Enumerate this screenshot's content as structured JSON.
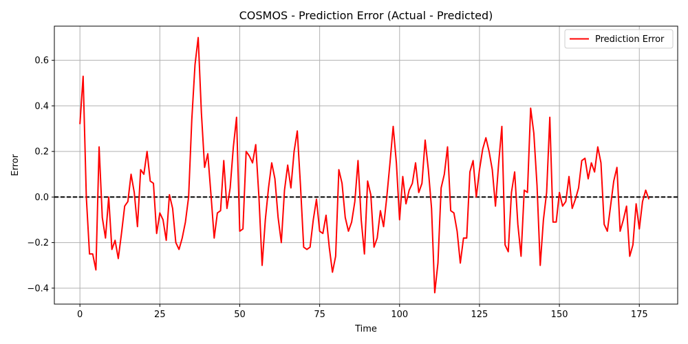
{
  "chart_data": {
    "type": "line",
    "title": "COSMOS - Prediction Error (Actual - Predicted)",
    "xlabel": "Time",
    "ylabel": "Error",
    "xlim": [
      -8,
      187
    ],
    "ylim": [
      -0.47,
      0.75
    ],
    "xticks": [
      0,
      25,
      50,
      75,
      100,
      125,
      150,
      175
    ],
    "xtick_labels": [
      "0",
      "25",
      "50",
      "75",
      "100",
      "125",
      "150",
      "175"
    ],
    "yticks": [
      -0.4,
      -0.2,
      0.0,
      0.2,
      0.4,
      0.6
    ],
    "ytick_labels": [
      "−0.4",
      "−0.2",
      "0.0",
      "0.2",
      "0.4",
      "0.6"
    ],
    "grid": true,
    "legend": {
      "position": "top-right",
      "entries": [
        "Prediction Error"
      ]
    },
    "reference_line": {
      "y": 0,
      "style": "dashed",
      "color": "#000000"
    },
    "series": [
      {
        "name": "Prediction Error",
        "color": "#ff0000",
        "values": [
          0.32,
          0.53,
          0.0,
          -0.25,
          -0.25,
          -0.32,
          0.22,
          -0.09,
          -0.18,
          0.0,
          -0.23,
          -0.19,
          -0.27,
          -0.16,
          -0.04,
          -0.02,
          0.1,
          0.02,
          -0.13,
          0.12,
          0.1,
          0.2,
          0.07,
          0.06,
          -0.16,
          -0.07,
          -0.1,
          -0.19,
          0.01,
          -0.05,
          -0.2,
          -0.23,
          -0.18,
          -0.11,
          0.0,
          0.34,
          0.58,
          0.7,
          0.37,
          0.13,
          0.19,
          0.01,
          -0.18,
          -0.07,
          -0.06,
          0.16,
          -0.05,
          0.04,
          0.22,
          0.35,
          -0.15,
          -0.14,
          0.2,
          0.18,
          0.15,
          0.23,
          0.0,
          -0.3,
          -0.1,
          0.04,
          0.15,
          0.08,
          -0.09,
          -0.2,
          0.03,
          0.14,
          0.04,
          0.2,
          0.29,
          0.05,
          -0.22,
          -0.23,
          -0.22,
          -0.1,
          -0.01,
          -0.15,
          -0.16,
          -0.08,
          -0.22,
          -0.33,
          -0.26,
          0.12,
          0.06,
          -0.09,
          -0.15,
          -0.11,
          -0.02,
          0.16,
          -0.1,
          -0.25,
          0.07,
          0.01,
          -0.22,
          -0.18,
          -0.06,
          -0.13,
          0.0,
          0.15,
          0.31,
          0.15,
          -0.1,
          0.09,
          -0.03,
          0.03,
          0.06,
          0.15,
          0.02,
          0.06,
          0.25,
          0.12,
          -0.05,
          -0.42,
          -0.29,
          0.04,
          0.1,
          0.22,
          -0.06,
          -0.07,
          -0.15,
          -0.29,
          -0.18,
          -0.18,
          0.11,
          0.16,
          0.0,
          0.12,
          0.21,
          0.26,
          0.2,
          0.12,
          -0.04,
          0.15,
          0.31,
          -0.21,
          -0.24,
          0.02,
          0.11,
          -0.12,
          -0.26,
          0.03,
          0.02,
          0.39,
          0.28,
          0.05,
          -0.3,
          -0.1,
          0.02,
          0.35,
          -0.11,
          -0.11,
          0.02,
          -0.04,
          -0.02,
          0.09,
          -0.05,
          -0.01,
          0.04,
          0.16,
          0.17,
          0.08,
          0.15,
          0.11,
          0.22,
          0.15,
          -0.12,
          -0.15,
          -0.04,
          0.07,
          0.13,
          -0.15,
          -0.1,
          -0.04,
          -0.26,
          -0.21,
          -0.03,
          -0.14,
          -0.02,
          0.03,
          -0.01
        ]
      }
    ]
  }
}
